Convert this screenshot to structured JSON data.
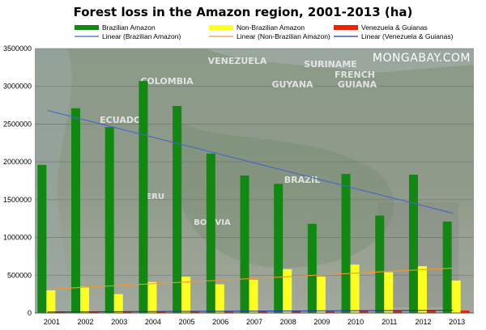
{
  "chart_data": {
    "type": "bar",
    "title": "Forest loss in the Amazon region, 2001-2013 (ha)",
    "xlabel": "",
    "ylabel": "",
    "ylim": [
      0,
      3500000
    ],
    "yticks": [
      "0",
      "500000",
      "1000000",
      "1500000",
      "2000000",
      "2500000",
      "3000000",
      "3500000"
    ],
    "ytick_values": [
      0,
      500000,
      1000000,
      1500000,
      2000000,
      2500000,
      3000000,
      3500000
    ],
    "grid": true,
    "legend_position": "top",
    "categories": [
      "2001",
      "2002",
      "2003",
      "2004",
      "2005",
      "2006",
      "2007",
      "2008",
      "2009",
      "2010",
      "2011",
      "2012",
      "2013"
    ],
    "series": [
      {
        "name": "Brazilian Amazon",
        "color": "#118811",
        "values": [
          1960000,
          2710000,
          2460000,
          3070000,
          2740000,
          2110000,
          1820000,
          1710000,
          1180000,
          1840000,
          1290000,
          1830000,
          1210000
        ]
      },
      {
        "name": "Non-Brazilian Amazon",
        "color": "#ffff22",
        "values": [
          300000,
          350000,
          250000,
          410000,
          480000,
          380000,
          440000,
          580000,
          480000,
          640000,
          540000,
          620000,
          430000
        ]
      },
      {
        "name": "Venezuela & Guianas",
        "color": "#ee2200",
        "values": [
          15000,
          16000,
          18000,
          17000,
          18000,
          20000,
          22000,
          25000,
          22000,
          28000,
          30000,
          40000,
          33000
        ]
      }
    ],
    "trendlines": [
      {
        "name": "Linear (Brazilian Amazon)",
        "color": "#4466cc",
        "start": 2680000,
        "end": 1320000
      },
      {
        "name": "Linear (Non-Brazilian Amazon)",
        "color": "#ee9933",
        "start": 315000,
        "end": 595000
      },
      {
        "name": "Linear (Venezuela & Guianas)",
        "color": "#223399",
        "start": 14000,
        "end": 36000
      }
    ],
    "annotations": {
      "watermark": "MONGABAY.COM",
      "map_labels": [
        "VENEZUELA",
        "SURINAME",
        "GUYANA",
        "FRENCH",
        "GUIANA",
        "COLOMBIA",
        "ECUADOR",
        "PERU",
        "BRAZIL",
        "BOLIVIA"
      ]
    }
  }
}
